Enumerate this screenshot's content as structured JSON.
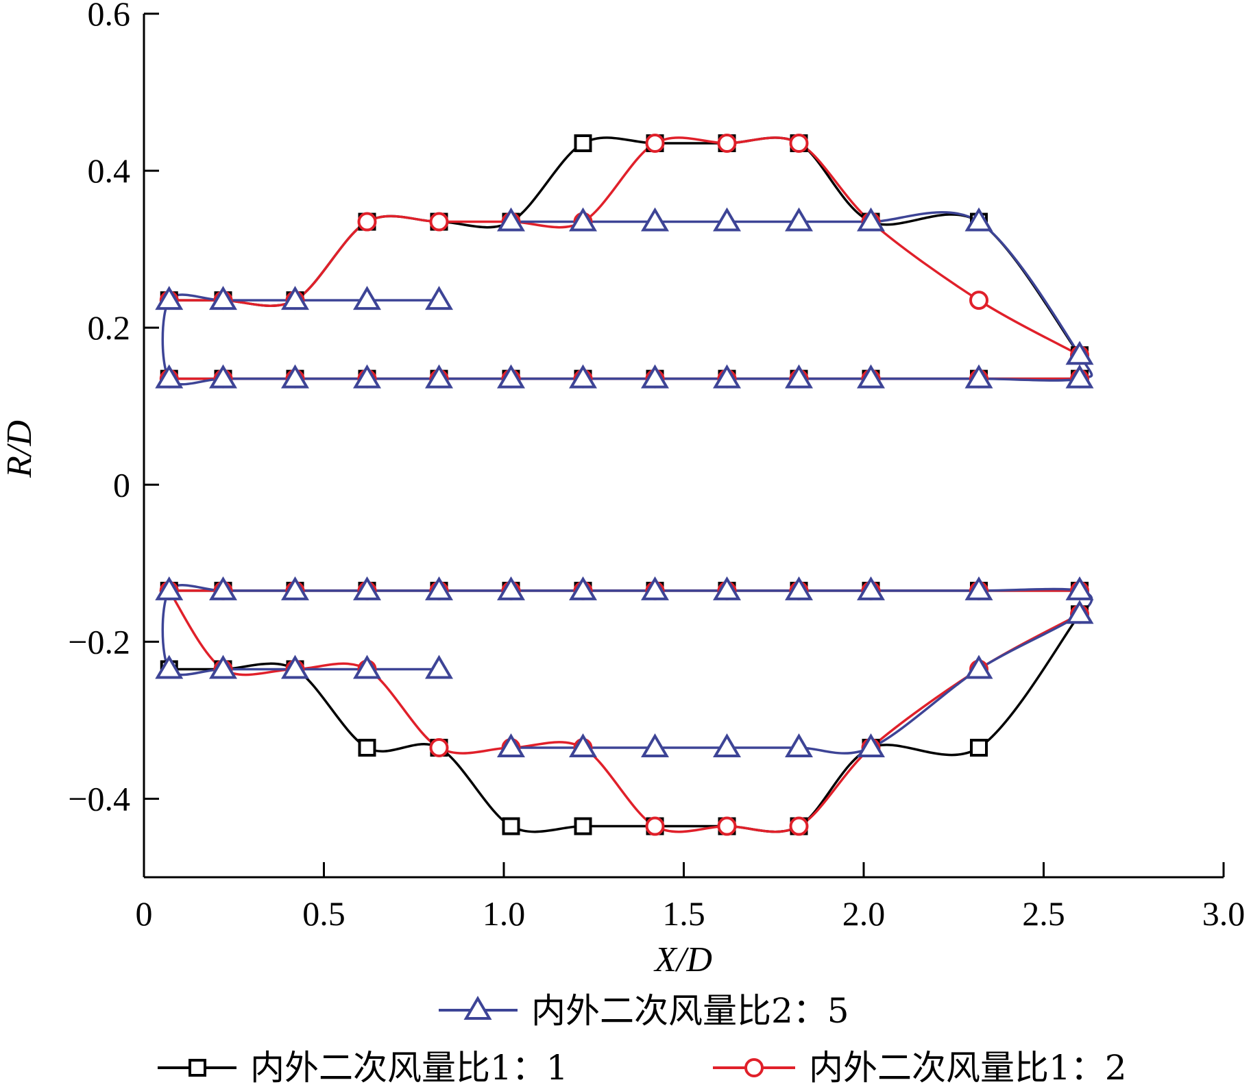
{
  "chart_data": {
    "type": "line",
    "xlabel": "X/D",
    "ylabel": "R/D",
    "xlim": [
      0,
      3.0
    ],
    "ylim": [
      -0.5,
      0.6
    ],
    "xticks": [
      {
        "value": 0,
        "label": "0"
      },
      {
        "value": 0.5,
        "label": "0.5"
      },
      {
        "value": 1.0,
        "label": "1.0"
      },
      {
        "value": 1.5,
        "label": "1.5"
      },
      {
        "value": 2.0,
        "label": "2.0"
      },
      {
        "value": 2.5,
        "label": "2.5"
      },
      {
        "value": 3.0,
        "label": "3.0"
      }
    ],
    "yticks": [
      {
        "value": 0.6,
        "label": "0.6"
      },
      {
        "value": 0.4,
        "label": "0.4"
      },
      {
        "value": 0.2,
        "label": "0.2"
      },
      {
        "value": 0,
        "label": "0"
      },
      {
        "value": -0.2,
        "label": "−0.2"
      },
      {
        "value": -0.4,
        "label": "−0.4"
      }
    ],
    "grid": false,
    "legend_position": "bottom",
    "series": [
      {
        "name": "内外二次风量比1：1",
        "color": "#000000",
        "marker": "square",
        "curves": [
          [
            [
              0.07,
              0.235
            ],
            [
              0.22,
              0.235
            ],
            [
              0.42,
              0.235
            ],
            [
              0.62,
              0.335
            ],
            [
              0.82,
              0.335
            ],
            [
              1.02,
              0.335
            ],
            [
              1.22,
              0.435
            ],
            [
              1.42,
              0.435
            ],
            [
              1.62,
              0.435
            ],
            [
              1.82,
              0.435
            ],
            [
              2.02,
              0.335
            ],
            [
              2.32,
              0.335
            ],
            [
              2.6,
              0.165
            ]
          ],
          [
            [
              0.07,
              -0.235
            ],
            [
              0.22,
              -0.235
            ],
            [
              0.42,
              -0.235
            ],
            [
              0.62,
              -0.335
            ],
            [
              0.82,
              -0.335
            ],
            [
              1.02,
              -0.435
            ],
            [
              1.22,
              -0.435
            ],
            [
              1.42,
              -0.435
            ],
            [
              1.62,
              -0.435
            ],
            [
              1.82,
              -0.435
            ],
            [
              2.02,
              -0.335
            ],
            [
              2.32,
              -0.335
            ],
            [
              2.6,
              -0.165
            ]
          ],
          [
            [
              0.07,
              0.135
            ],
            [
              0.22,
              0.135
            ],
            [
              0.42,
              0.135
            ],
            [
              0.62,
              0.135
            ],
            [
              0.82,
              0.135
            ],
            [
              1.02,
              0.135
            ],
            [
              1.22,
              0.135
            ],
            [
              1.42,
              0.135
            ],
            [
              1.62,
              0.135
            ],
            [
              1.82,
              0.135
            ],
            [
              2.02,
              0.135
            ],
            [
              2.32,
              0.135
            ],
            [
              2.6,
              0.135
            ]
          ],
          [
            [
              0.07,
              -0.135
            ],
            [
              0.22,
              -0.135
            ],
            [
              0.42,
              -0.135
            ],
            [
              0.62,
              -0.135
            ],
            [
              0.82,
              -0.135
            ],
            [
              1.02,
              -0.135
            ],
            [
              1.22,
              -0.135
            ],
            [
              1.42,
              -0.135
            ],
            [
              1.62,
              -0.135
            ],
            [
              1.82,
              -0.135
            ],
            [
              2.02,
              -0.135
            ],
            [
              2.32,
              -0.135
            ],
            [
              2.6,
              -0.135
            ]
          ]
        ]
      },
      {
        "name": "内外二次风量比1：2",
        "color": "#e0202a",
        "marker": "circle",
        "curves": [
          [
            [
              0.07,
              0.235
            ],
            [
              0.22,
              0.235
            ],
            [
              0.42,
              0.235
            ],
            [
              0.62,
              0.335
            ],
            [
              0.82,
              0.335
            ],
            [
              1.02,
              0.335
            ],
            [
              1.22,
              0.335
            ],
            [
              1.42,
              0.435
            ],
            [
              1.62,
              0.435
            ],
            [
              1.82,
              0.435
            ],
            [
              2.02,
              0.335
            ],
            [
              2.32,
              0.235
            ],
            [
              2.6,
              0.165
            ]
          ],
          [
            [
              0.07,
              -0.135
            ],
            [
              0.22,
              -0.235
            ],
            [
              0.42,
              -0.235
            ],
            [
              0.62,
              -0.235
            ],
            [
              0.82,
              -0.335
            ],
            [
              1.02,
              -0.335
            ],
            [
              1.22,
              -0.335
            ],
            [
              1.42,
              -0.435
            ],
            [
              1.62,
              -0.435
            ],
            [
              1.82,
              -0.435
            ],
            [
              2.02,
              -0.335
            ],
            [
              2.32,
              -0.235
            ],
            [
              2.6,
              -0.165
            ]
          ],
          [
            [
              0.07,
              0.135
            ],
            [
              0.22,
              0.135
            ],
            [
              0.42,
              0.135
            ],
            [
              0.62,
              0.135
            ],
            [
              0.82,
              0.135
            ],
            [
              1.02,
              0.135
            ],
            [
              1.22,
              0.135
            ],
            [
              1.42,
              0.135
            ],
            [
              1.62,
              0.135
            ],
            [
              1.82,
              0.135
            ],
            [
              2.02,
              0.135
            ],
            [
              2.32,
              0.135
            ],
            [
              2.6,
              0.135
            ]
          ],
          [
            [
              0.07,
              -0.135
            ],
            [
              0.22,
              -0.135
            ],
            [
              0.42,
              -0.135
            ],
            [
              0.62,
              -0.135
            ],
            [
              0.82,
              -0.135
            ],
            [
              1.02,
              -0.135
            ],
            [
              1.22,
              -0.135
            ],
            [
              1.42,
              -0.135
            ],
            [
              1.62,
              -0.135
            ],
            [
              1.82,
              -0.135
            ],
            [
              2.02,
              -0.135
            ],
            [
              2.32,
              -0.135
            ],
            [
              2.6,
              -0.135
            ]
          ]
        ]
      },
      {
        "name": "内外二次风量比2：5",
        "color": "#3d4496",
        "marker": "triangle",
        "curves": [
          [
            [
              0.82,
              0.235
            ],
            [
              0.62,
              0.235
            ],
            [
              0.42,
              0.235
            ],
            [
              0.22,
              0.235
            ],
            [
              0.07,
              0.235
            ],
            [
              0.07,
              0.135
            ],
            [
              0.22,
              0.135
            ],
            [
              0.42,
              0.135
            ],
            [
              0.62,
              0.135
            ],
            [
              0.82,
              0.135
            ],
            [
              1.02,
              0.135
            ],
            [
              1.22,
              0.135
            ],
            [
              1.42,
              0.135
            ],
            [
              1.62,
              0.135
            ],
            [
              1.82,
              0.135
            ],
            [
              2.02,
              0.135
            ],
            [
              2.32,
              0.135
            ],
            [
              2.6,
              0.135
            ],
            [
              2.6,
              0.165
            ],
            [
              2.32,
              0.335
            ],
            [
              2.02,
              0.335
            ],
            [
              1.82,
              0.335
            ],
            [
              1.62,
              0.335
            ],
            [
              1.42,
              0.335
            ],
            [
              1.22,
              0.335
            ],
            [
              1.02,
              0.335
            ]
          ],
          [
            [
              0.82,
              -0.235
            ],
            [
              0.62,
              -0.235
            ],
            [
              0.42,
              -0.235
            ],
            [
              0.22,
              -0.235
            ],
            [
              0.07,
              -0.235
            ],
            [
              0.07,
              -0.135
            ],
            [
              0.22,
              -0.135
            ],
            [
              0.42,
              -0.135
            ],
            [
              0.62,
              -0.135
            ],
            [
              0.82,
              -0.135
            ],
            [
              1.02,
              -0.135
            ],
            [
              1.22,
              -0.135
            ],
            [
              1.42,
              -0.135
            ],
            [
              1.62,
              -0.135
            ],
            [
              1.82,
              -0.135
            ],
            [
              2.02,
              -0.135
            ],
            [
              2.32,
              -0.135
            ],
            [
              2.6,
              -0.135
            ],
            [
              2.6,
              -0.165
            ],
            [
              2.32,
              -0.235
            ],
            [
              2.02,
              -0.335
            ],
            [
              1.82,
              -0.335
            ],
            [
              1.62,
              -0.335
            ],
            [
              1.42,
              -0.335
            ],
            [
              1.22,
              -0.335
            ],
            [
              1.02,
              -0.335
            ]
          ]
        ]
      }
    ]
  }
}
